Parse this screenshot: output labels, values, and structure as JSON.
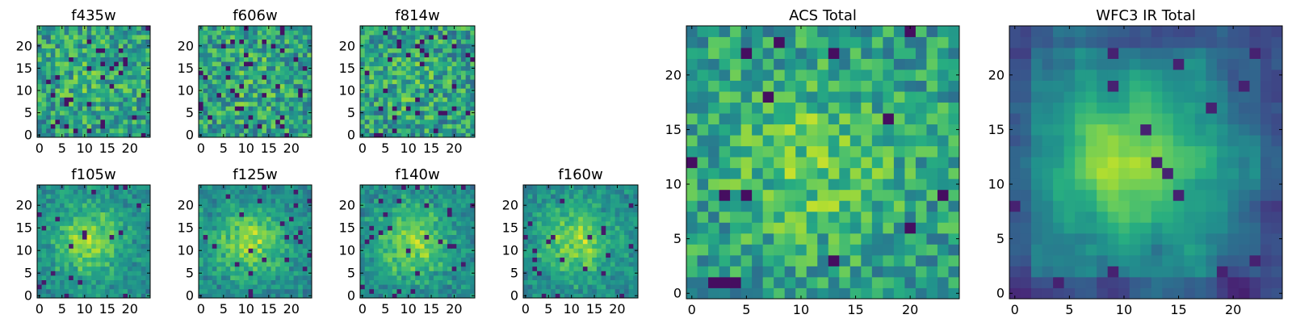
{
  "figure": {
    "colormap": "viridis",
    "background": "#ffffff"
  },
  "chart_data": [
    {
      "type": "heatmap",
      "title": "f435w",
      "grid_size": 25,
      "xlim": [
        0,
        24
      ],
      "ylim": [
        0,
        24
      ],
      "xticks": [
        0,
        5,
        10,
        15,
        20
      ],
      "yticks": [
        0,
        5,
        10,
        15,
        20
      ],
      "pattern": "noise",
      "seed": 11
    },
    {
      "type": "heatmap",
      "title": "f606w",
      "grid_size": 25,
      "xlim": [
        0,
        24
      ],
      "ylim": [
        0,
        24
      ],
      "xticks": [
        0,
        5,
        10,
        15,
        20
      ],
      "yticks": [
        0,
        5,
        10,
        15,
        20
      ],
      "pattern": "noise",
      "seed": 23
    },
    {
      "type": "heatmap",
      "title": "f814w",
      "grid_size": 25,
      "xlim": [
        0,
        24
      ],
      "ylim": [
        0,
        24
      ],
      "xticks": [
        0,
        5,
        10,
        15,
        20
      ],
      "yticks": [
        0,
        5,
        10,
        15,
        20
      ],
      "pattern": "noise",
      "seed": 37
    },
    {
      "type": "heatmap",
      "title": "f105w",
      "grid_size": 25,
      "xlim": [
        0,
        24
      ],
      "ylim": [
        0,
        24
      ],
      "xticks": [
        0,
        5,
        10,
        15,
        20
      ],
      "yticks": [
        0,
        5,
        10,
        15,
        20
      ],
      "pattern": "blob",
      "seed": 41
    },
    {
      "type": "heatmap",
      "title": "f125w",
      "grid_size": 25,
      "xlim": [
        0,
        24
      ],
      "ylim": [
        0,
        24
      ],
      "xticks": [
        0,
        5,
        10,
        15,
        20
      ],
      "yticks": [
        0,
        5,
        10,
        15,
        20
      ],
      "pattern": "blob",
      "seed": 53
    },
    {
      "type": "heatmap",
      "title": "f140w",
      "grid_size": 25,
      "xlim": [
        0,
        24
      ],
      "ylim": [
        0,
        24
      ],
      "xticks": [
        0,
        5,
        10,
        15,
        20
      ],
      "yticks": [
        0,
        5,
        10,
        15,
        20
      ],
      "pattern": "blob",
      "seed": 67
    },
    {
      "type": "heatmap",
      "title": "f160w",
      "grid_size": 25,
      "xlim": [
        0,
        24
      ],
      "ylim": [
        0,
        24
      ],
      "xticks": [
        0,
        5,
        10,
        15,
        20
      ],
      "yticks": [
        0,
        5,
        10,
        15,
        20
      ],
      "pattern": "blob",
      "seed": 79
    },
    {
      "type": "heatmap",
      "title": "ACS Total",
      "grid_size": 25,
      "xlim": [
        0,
        24
      ],
      "ylim": [
        0,
        24
      ],
      "xticks": [
        0,
        5,
        10,
        15,
        20
      ],
      "yticks": [
        0,
        5,
        10,
        15,
        20
      ],
      "pattern": "noise-blob",
      "seed": 97
    },
    {
      "type": "heatmap",
      "title": "WFC3 IR Total",
      "grid_size": 25,
      "xlim": [
        0,
        24
      ],
      "ylim": [
        0,
        24
      ],
      "xticks": [
        0,
        5,
        10,
        15,
        20
      ],
      "yticks": [
        0,
        5,
        10,
        15,
        20
      ],
      "pattern": "smooth-blob",
      "seed": 131
    }
  ]
}
